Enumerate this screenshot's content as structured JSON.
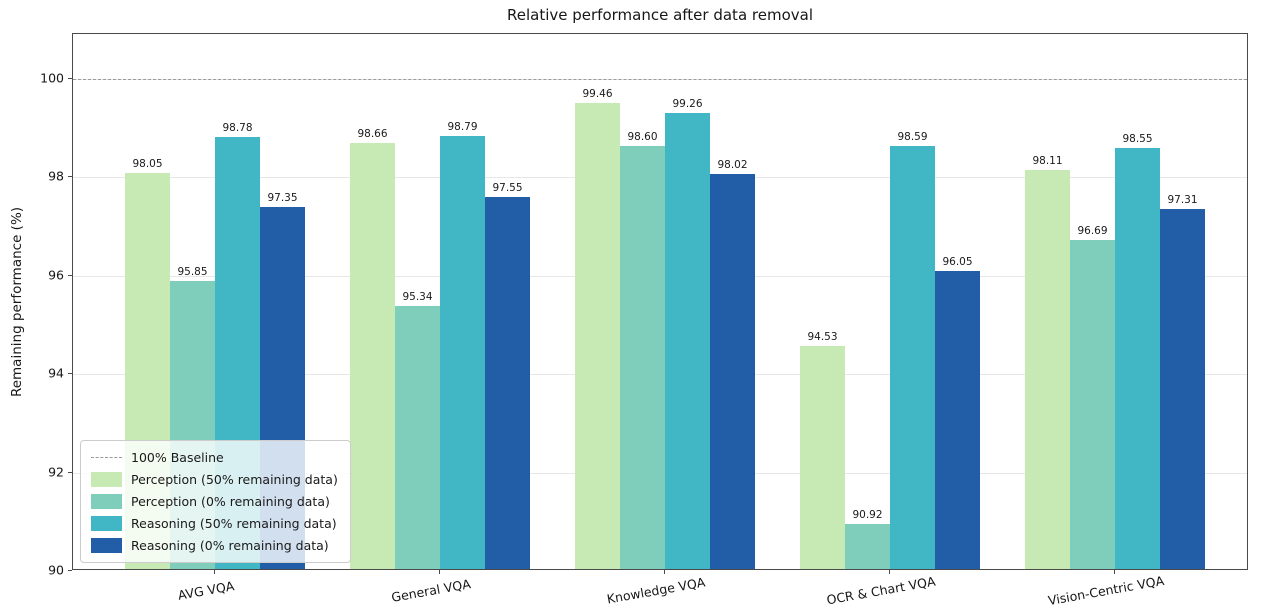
{
  "chart_data": {
    "type": "bar",
    "title": "Relative performance after data removal",
    "xlabel": "",
    "ylabel": "Remaining performance (%)",
    "ylim": [
      90,
      100.91
    ],
    "yticks": [
      90,
      92,
      94,
      96,
      98,
      100
    ],
    "grid": true,
    "legend_position": "lower left",
    "categories": [
      "AVG VQA",
      "General VQA",
      "Knowledge VQA",
      "OCR & Chart VQA",
      "Vision-Centric VQA"
    ],
    "series": [
      {
        "name": "Perception (50% remaining data)",
        "color": "#c7e9b4",
        "values": [
          98.05,
          98.66,
          99.46,
          94.53,
          98.11
        ]
      },
      {
        "name": "Perception (0% remaining data)",
        "color": "#7fcdbb",
        "values": [
          95.85,
          95.34,
          98.6,
          90.92,
          96.69
        ]
      },
      {
        "name": "Reasoning (50% remaining data)",
        "color": "#41b6c4",
        "values": [
          98.78,
          98.79,
          99.26,
          98.59,
          98.55
        ]
      },
      {
        "name": "Reasoning (0% remaining data)",
        "color": "#225ea8",
        "values": [
          97.35,
          97.55,
          98.02,
          96.05,
          97.31
        ]
      }
    ],
    "baseline": {
      "value": 100,
      "label": "100% Baseline",
      "style": "dashed",
      "color": "#9a9a9a"
    },
    "value_label_decimals": 2
  }
}
